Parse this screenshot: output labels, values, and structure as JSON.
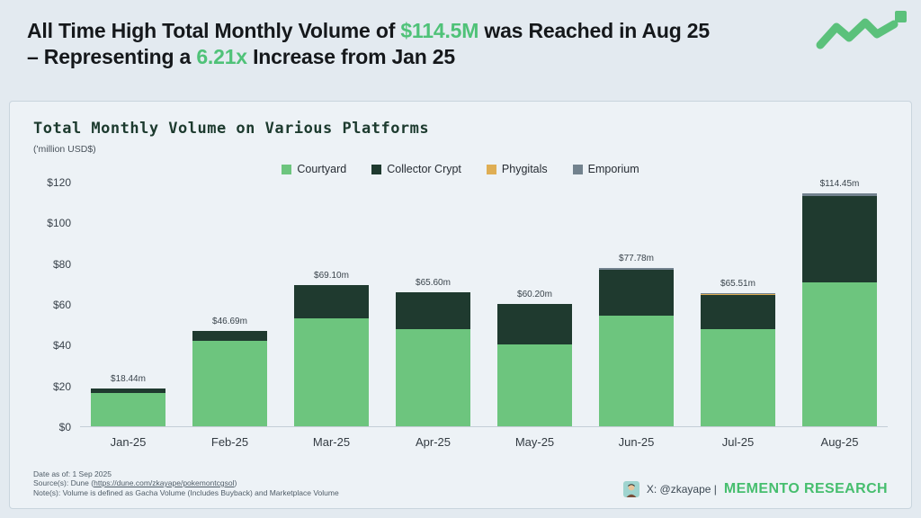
{
  "header": {
    "line1_pre": "All Time High Total Monthly Volume of ",
    "line1_highlight": "$114.5M",
    "line1_post": " was Reached in Aug 25",
    "line2_pre": "– Representing a ",
    "line2_highlight": "6.21x",
    "line2_post": " Increase from Jan 25"
  },
  "colors": {
    "accent_green": "#4fc278",
    "brand_green": "#46be6e",
    "logo_green": "#5bc17b",
    "page_bg": "#e3eaf0",
    "card_bg": "#edf2f6"
  },
  "chart_data": {
    "type": "bar",
    "stacked": true,
    "title": "Total Monthly Volume on Various Platforms",
    "subtitle": "('million USD$)",
    "categories": [
      "Jan-25",
      "Feb-25",
      "Mar-25",
      "Apr-25",
      "May-25",
      "Jun-25",
      "Jul-25",
      "Aug-25"
    ],
    "series": [
      {
        "name": "Courtyard",
        "color": "#6dc57e",
        "values": [
          16.2,
          41.9,
          53.1,
          47.6,
          40.0,
          54.4,
          47.7,
          70.7
        ]
      },
      {
        "name": "Collector Crypt",
        "color": "#1f3a2f",
        "values": [
          2.24,
          4.79,
          16.0,
          18.0,
          20.2,
          22.2,
          16.8,
          42.4
        ]
      },
      {
        "name": "Phygitals",
        "color": "#dfae54",
        "values": [
          0,
          0,
          0,
          0,
          0,
          0,
          0.5,
          0
        ]
      },
      {
        "name": "Emporium",
        "color": "#72828e",
        "values": [
          0,
          0,
          0,
          0,
          0,
          1.18,
          0.51,
          1.35
        ]
      }
    ],
    "totals": [
      18.44,
      46.69,
      69.1,
      65.6,
      60.2,
      77.78,
      65.51,
      114.45
    ],
    "totals_labels": [
      "$18.44m",
      "$46.69m",
      "$69.10m",
      "$65.60m",
      "$60.20m",
      "$77.78m",
      "$65.51m",
      "$114.45m"
    ],
    "ylim": [
      0,
      120
    ],
    "ytick_labels": [
      "$0",
      "$20",
      "$40",
      "$60",
      "$80",
      "$100",
      "$120"
    ],
    "legend_position": "top",
    "grid": false
  },
  "footer": {
    "date": "Date as of: 1 Sep 2025",
    "source_prefix": "Source(s): Dune (",
    "source_link": "https://dune.com/zkayape/pokemontcgsol",
    "source_suffix": ")",
    "note": "Note(s): Volume is defined as Gacha Volume (Includes Buyback) and Marketplace Volume",
    "social": "X: @zkayape |",
    "brand": "MEMENTO RESEARCH"
  }
}
